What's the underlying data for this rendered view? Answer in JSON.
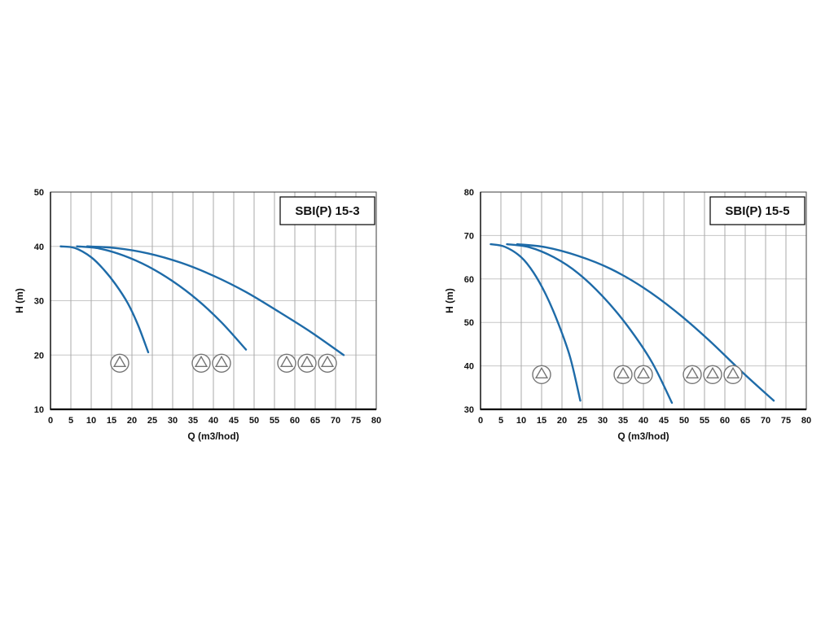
{
  "colors": {
    "curve": "#1e6ba8",
    "grid_v": "#a9a9a9",
    "grid_h": "#c6c6c6",
    "frame": "#3c3c3c",
    "axis": "#000000",
    "pump_icon": "#757575",
    "text": "#111111"
  },
  "chart_data": [
    {
      "type": "line",
      "title": "SBI(P) 15-3",
      "xlabel": "Q (m3/hod)",
      "ylabel": "H (m)",
      "xlim": [
        0,
        80
      ],
      "ylim": [
        10,
        50
      ],
      "xticks": [
        0,
        5,
        10,
        15,
        20,
        25,
        30,
        35,
        40,
        45,
        50,
        55,
        60,
        65,
        70,
        75,
        80
      ],
      "yticks": [
        10,
        20,
        30,
        40,
        50
      ],
      "grid": true,
      "legend": "none",
      "series": [
        {
          "name": "1-pump-curve",
          "points": [
            [
              2.5,
              40
            ],
            [
              6,
              39.7
            ],
            [
              10,
              38
            ],
            [
              13,
              35.8
            ],
            [
              16,
              33
            ],
            [
              19,
              29.5
            ],
            [
              21.5,
              25.5
            ],
            [
              24,
              20.5
            ]
          ]
        },
        {
          "name": "2-pump-curve",
          "points": [
            [
              6.5,
              40
            ],
            [
              12,
              39.6
            ],
            [
              18,
              38.3
            ],
            [
              24,
              36.3
            ],
            [
              30,
              33.6
            ],
            [
              36,
              30.2
            ],
            [
              42,
              26
            ],
            [
              48,
              21
            ]
          ]
        },
        {
          "name": "3-pump-curve",
          "points": [
            [
              9,
              40
            ],
            [
              16,
              39.7
            ],
            [
              24,
              38.7
            ],
            [
              32,
              37
            ],
            [
              40,
              34.6
            ],
            [
              48,
              31.6
            ],
            [
              56,
              28
            ],
            [
              64,
              24.2
            ],
            [
              72,
              20
            ]
          ]
        }
      ],
      "pump_groups": [
        {
          "h": 18.5,
          "q": [
            17
          ]
        },
        {
          "h": 18.5,
          "q": [
            37,
            42
          ]
        },
        {
          "h": 18.5,
          "q": [
            58,
            63,
            68
          ]
        }
      ]
    },
    {
      "type": "line",
      "title": "SBI(P) 15-5",
      "xlabel": "Q (m3/hod)",
      "ylabel": "H (m)",
      "xlim": [
        0,
        80
      ],
      "ylim": [
        30,
        80
      ],
      "xticks": [
        0,
        5,
        10,
        15,
        20,
        25,
        30,
        35,
        40,
        45,
        50,
        55,
        60,
        65,
        70,
        75,
        80
      ],
      "yticks": [
        30,
        40,
        50,
        60,
        70,
        80
      ],
      "grid": true,
      "legend": "none",
      "series": [
        {
          "name": "1-pump-curve",
          "points": [
            [
              2.5,
              68
            ],
            [
              6,
              67.4
            ],
            [
              10,
              65
            ],
            [
              13,
              61.5
            ],
            [
              16,
              56.5
            ],
            [
              19,
              50
            ],
            [
              22,
              42
            ],
            [
              24.5,
              32
            ]
          ]
        },
        {
          "name": "2-pump-curve",
          "points": [
            [
              6.5,
              68
            ],
            [
              12,
              67.3
            ],
            [
              18,
              65
            ],
            [
              24,
              61.3
            ],
            [
              30,
              56
            ],
            [
              36,
              49.3
            ],
            [
              42,
              41
            ],
            [
              47,
              31.5
            ]
          ]
        },
        {
          "name": "3-pump-curve",
          "points": [
            [
              9,
              68
            ],
            [
              16,
              67.3
            ],
            [
              24,
              65.3
            ],
            [
              32,
              62.3
            ],
            [
              40,
              58
            ],
            [
              48,
              52.5
            ],
            [
              56,
              46
            ],
            [
              64,
              38.8
            ],
            [
              72,
              32
            ]
          ]
        }
      ],
      "pump_groups": [
        {
          "h": 38,
          "q": [
            15
          ]
        },
        {
          "h": 38,
          "q": [
            35,
            40
          ]
        },
        {
          "h": 38,
          "q": [
            52,
            57,
            62
          ]
        }
      ]
    }
  ]
}
